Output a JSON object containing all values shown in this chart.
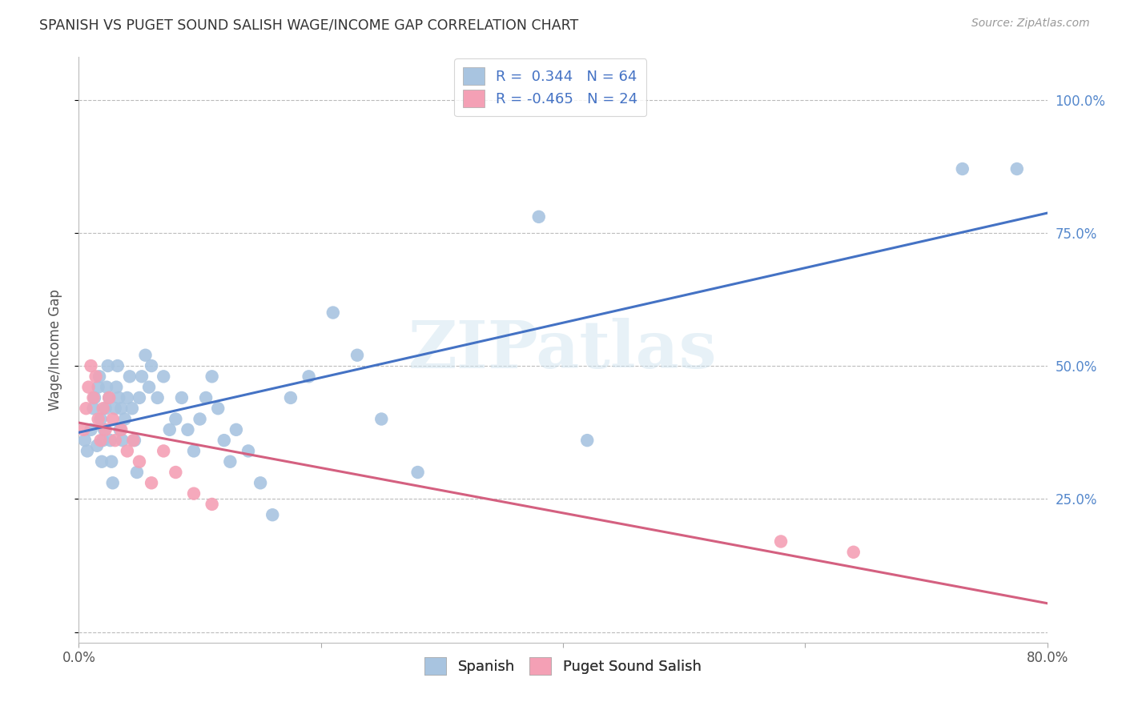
{
  "title": "SPANISH VS PUGET SOUND SALISH WAGE/INCOME GAP CORRELATION CHART",
  "source": "Source: ZipAtlas.com",
  "ylabel": "Wage/Income Gap",
  "xlim": [
    0.0,
    0.8
  ],
  "ylim": [
    -0.02,
    1.08
  ],
  "watermark": "ZIPatlas",
  "legend_r_spanish": "0.344",
  "legend_n_spanish": "64",
  "legend_r_salish": "-0.465",
  "legend_n_salish": "24",
  "spanish_color": "#a8c4e0",
  "salish_color": "#f4a0b5",
  "spanish_line_color": "#4472c4",
  "salish_line_color": "#d46080",
  "background_color": "#ffffff",
  "grid_color": "#bbbbbb",
  "title_color": "#333333",
  "spanish_x": [
    0.005,
    0.007,
    0.01,
    0.012,
    0.013,
    0.015,
    0.016,
    0.017,
    0.018,
    0.019,
    0.02,
    0.021,
    0.022,
    0.023,
    0.024,
    0.025,
    0.026,
    0.027,
    0.028,
    0.03,
    0.031,
    0.032,
    0.033,
    0.034,
    0.035,
    0.036,
    0.038,
    0.04,
    0.042,
    0.044,
    0.046,
    0.048,
    0.05,
    0.052,
    0.055,
    0.058,
    0.06,
    0.065,
    0.07,
    0.075,
    0.08,
    0.085,
    0.09,
    0.095,
    0.1,
    0.105,
    0.11,
    0.115,
    0.12,
    0.125,
    0.13,
    0.14,
    0.15,
    0.16,
    0.175,
    0.19,
    0.21,
    0.23,
    0.25,
    0.28,
    0.38,
    0.42,
    0.73,
    0.775
  ],
  "spanish_y": [
    0.36,
    0.34,
    0.38,
    0.42,
    0.44,
    0.35,
    0.46,
    0.48,
    0.4,
    0.32,
    0.36,
    0.38,
    0.42,
    0.46,
    0.5,
    0.44,
    0.36,
    0.32,
    0.28,
    0.42,
    0.46,
    0.5,
    0.44,
    0.38,
    0.42,
    0.36,
    0.4,
    0.44,
    0.48,
    0.42,
    0.36,
    0.3,
    0.44,
    0.48,
    0.52,
    0.46,
    0.5,
    0.44,
    0.48,
    0.38,
    0.4,
    0.44,
    0.38,
    0.34,
    0.4,
    0.44,
    0.48,
    0.42,
    0.36,
    0.32,
    0.38,
    0.34,
    0.28,
    0.22,
    0.44,
    0.48,
    0.6,
    0.52,
    0.4,
    0.3,
    0.78,
    0.36,
    0.87,
    0.87
  ],
  "salish_x": [
    0.004,
    0.006,
    0.008,
    0.01,
    0.012,
    0.014,
    0.016,
    0.018,
    0.02,
    0.022,
    0.025,
    0.028,
    0.03,
    0.035,
    0.04,
    0.045,
    0.05,
    0.06,
    0.07,
    0.08,
    0.095,
    0.11,
    0.58,
    0.64
  ],
  "salish_y": [
    0.38,
    0.42,
    0.46,
    0.5,
    0.44,
    0.48,
    0.4,
    0.36,
    0.42,
    0.38,
    0.44,
    0.4,
    0.36,
    0.38,
    0.34,
    0.36,
    0.32,
    0.28,
    0.34,
    0.3,
    0.26,
    0.24,
    0.17,
    0.15
  ]
}
